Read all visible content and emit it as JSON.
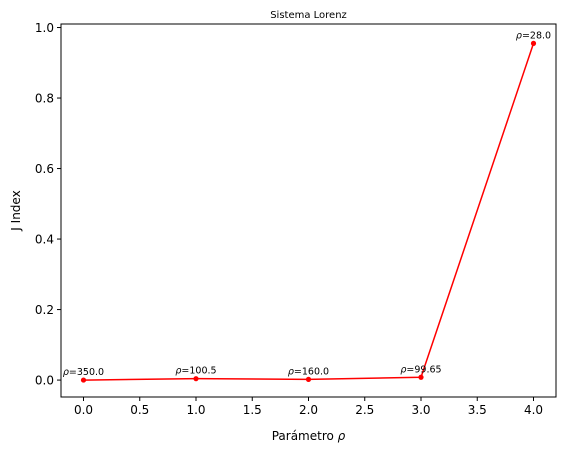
{
  "chart_data": {
    "type": "line",
    "title": "Sistema Lorenz",
    "xlabel": "Parámetro ρ",
    "ylabel": "J Index",
    "xlim": [
      -0.2,
      4.2
    ],
    "ylim": [
      -0.048,
      1.01
    ],
    "xticks": [
      0.0,
      0.5,
      1.0,
      1.5,
      2.0,
      2.5,
      3.0,
      3.5,
      4.0
    ],
    "xtick_labels": [
      "0.0",
      "0.5",
      "1.0",
      "1.5",
      "2.0",
      "2.5",
      "3.0",
      "3.5",
      "4.0"
    ],
    "yticks": [
      0.0,
      0.2,
      0.4,
      0.6,
      0.8,
      1.0
    ],
    "ytick_labels": [
      "0.0",
      "0.2",
      "0.4",
      "0.6",
      "0.8",
      "1.0"
    ],
    "grid": false,
    "series": [
      {
        "color": "#ff0000",
        "x": [
          0,
          1,
          2,
          3,
          4
        ],
        "y": [
          0.0,
          0.004,
          0.002,
          0.008,
          0.955
        ]
      }
    ],
    "annotations": [
      {
        "symbol": "ρ",
        "text": "=350.0",
        "x": 0,
        "y": 0.0
      },
      {
        "symbol": "ρ",
        "text": "=100.5",
        "x": 1,
        "y": 0.004
      },
      {
        "symbol": "ρ",
        "text": "=160.0",
        "x": 2,
        "y": 0.002
      },
      {
        "symbol": "ρ",
        "text": "=99.65",
        "x": 3,
        "y": 0.008
      },
      {
        "symbol": "ρ",
        "text": "=28.0",
        "x": 4,
        "y": 0.955
      }
    ]
  }
}
